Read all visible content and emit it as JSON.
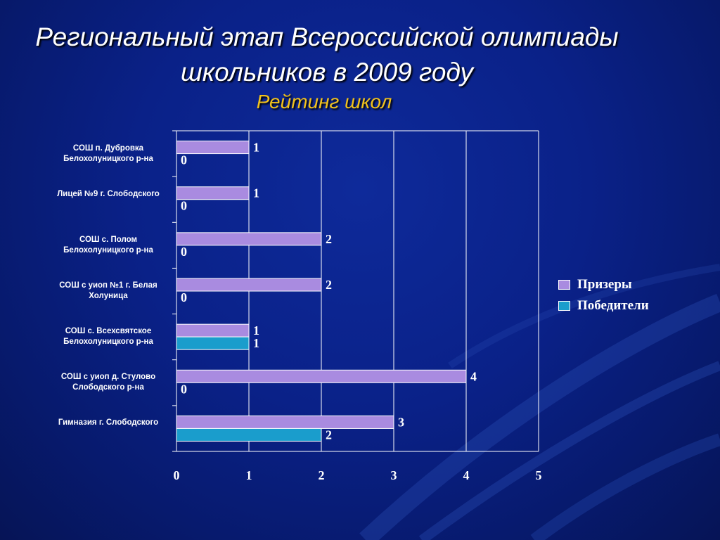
{
  "title": {
    "line1": "Региональный этап Всероссийской олимпиады",
    "line2": "школьников в 2009 году"
  },
  "subtitle": "Рейтинг школ",
  "chart_data": {
    "type": "bar",
    "orientation": "horizontal",
    "categories": [
      "СОШ п. Дубровка Белохолуницкого р-на",
      "Лицей №9 г. Слободского",
      "СОШ с. Полом Белохолуницкого р-на",
      "СОШ с уиоп №1 г. Белая Холуница",
      "СОШ с. Всехсвятское Белохолуницкого р-на",
      "СОШ с уиоп д. Стулово Слободского р-на",
      "Гимназия г. Слободского"
    ],
    "series": [
      {
        "name": "Призеры",
        "color": "#a98be0",
        "values": [
          1,
          1,
          2,
          2,
          1,
          4,
          3
        ]
      },
      {
        "name": "Победители",
        "color": "#1a9dcc",
        "values": [
          0,
          0,
          0,
          0,
          1,
          0,
          2
        ]
      }
    ],
    "xlim": [
      0,
      5
    ],
    "xticks": [
      "0",
      "1",
      "2",
      "3",
      "4",
      "5"
    ],
    "grid": true,
    "legend": "right"
  }
}
